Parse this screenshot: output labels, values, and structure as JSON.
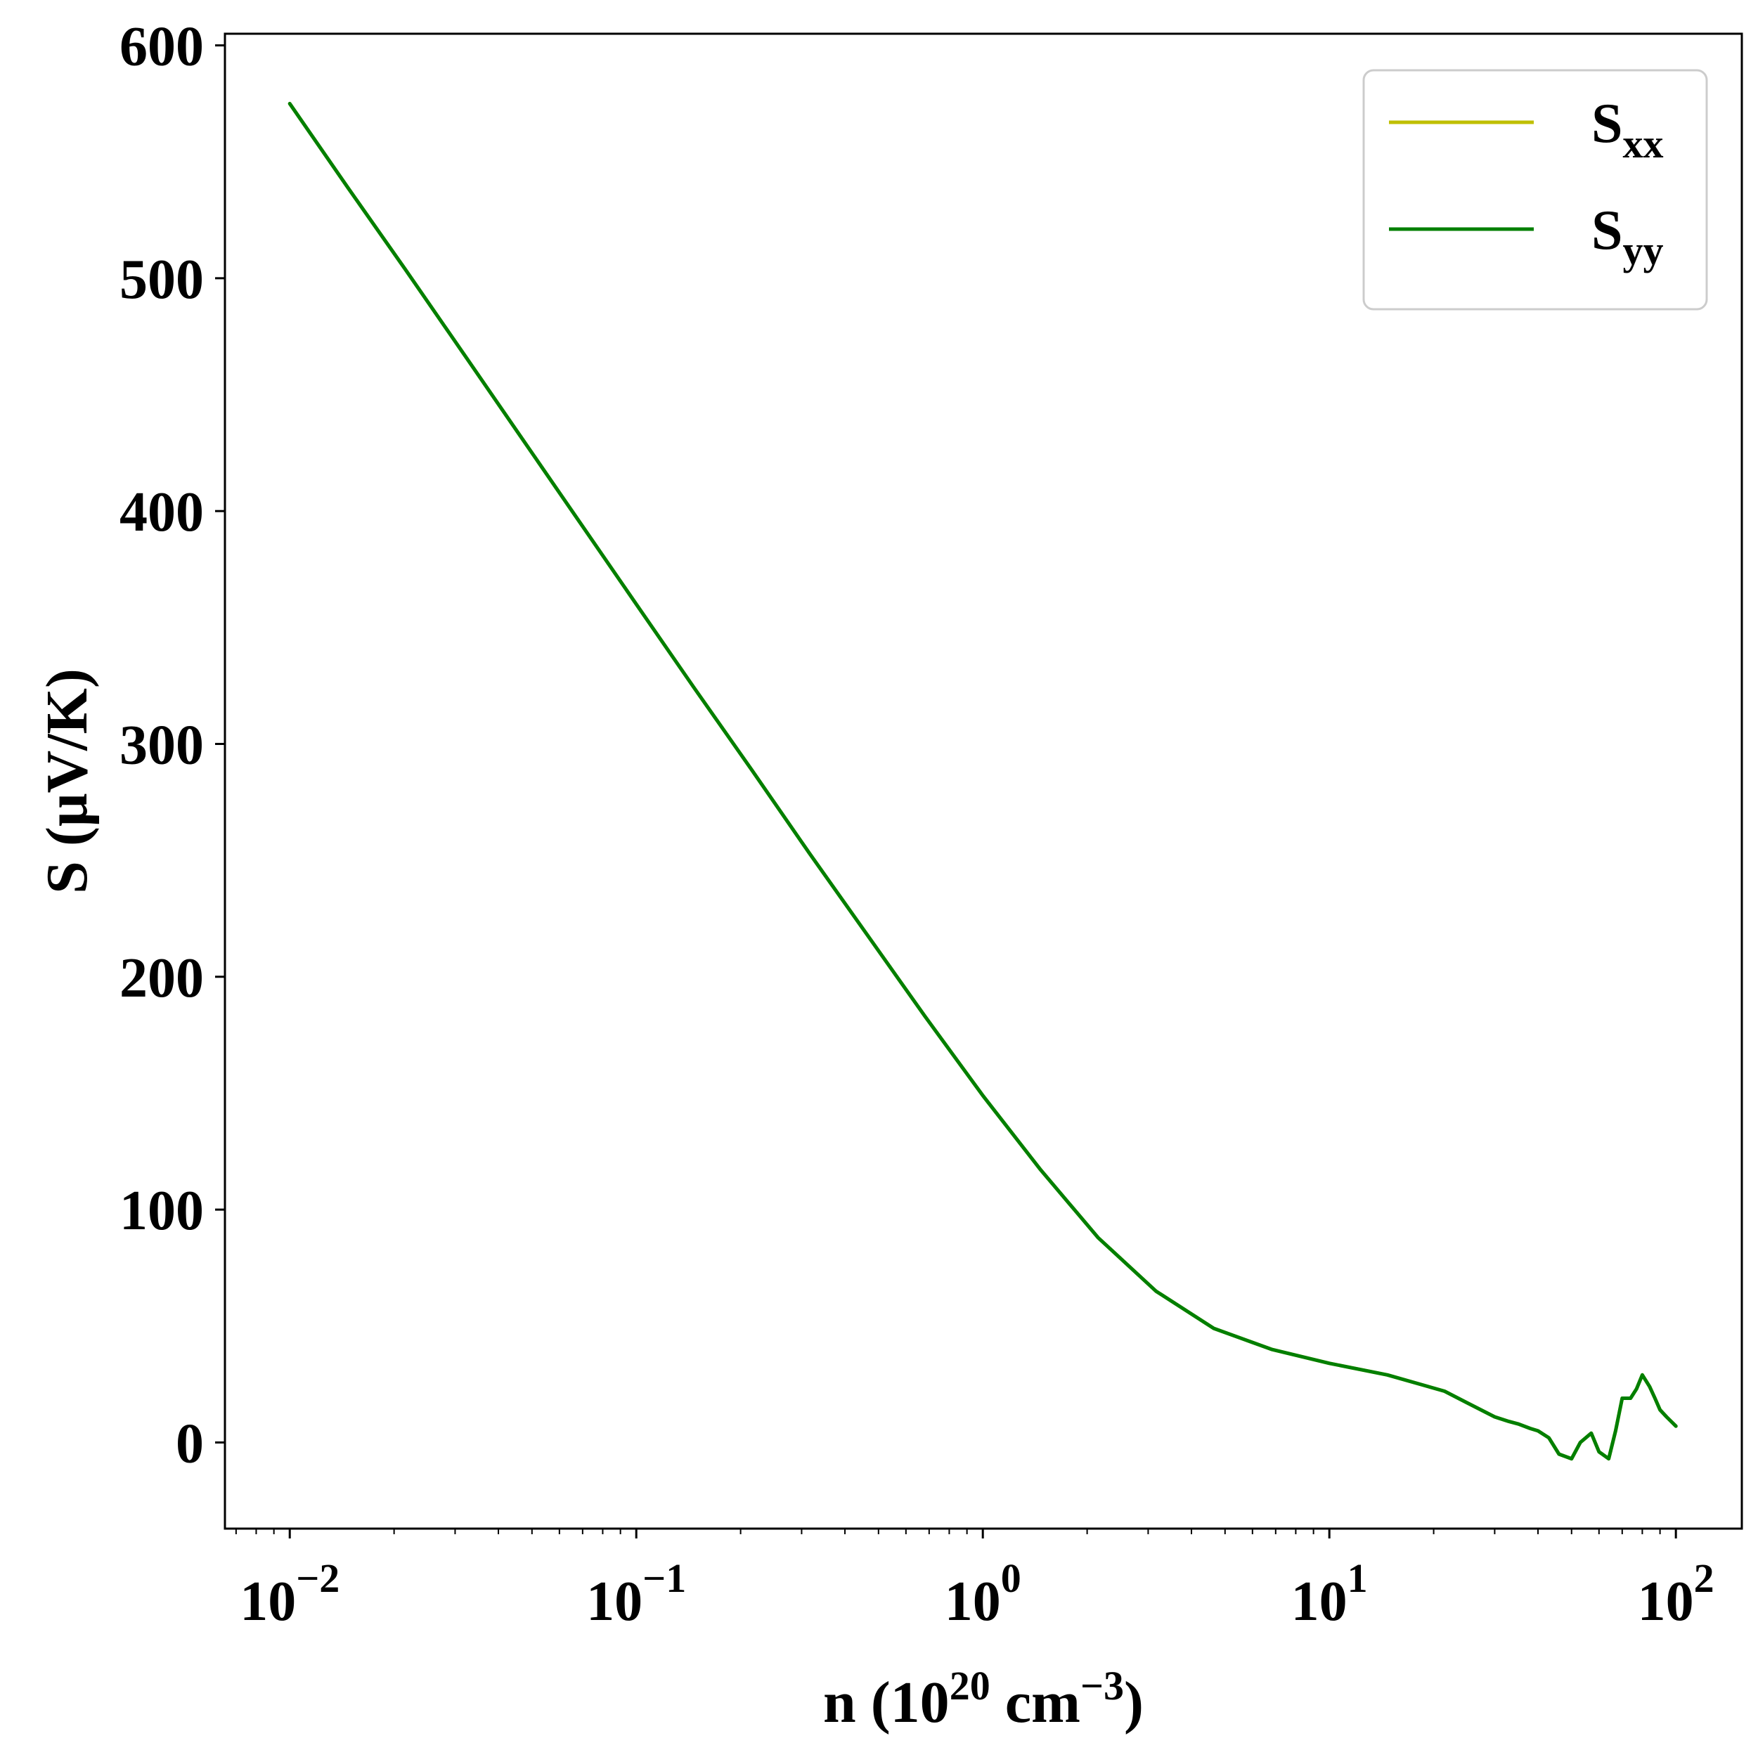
{
  "chart_data": {
    "type": "line",
    "xscale": "log",
    "xlim": [
      0.0065,
      155
    ],
    "ylim": [
      -37,
      605
    ],
    "grid": false,
    "legend_position": "top-right",
    "xlabel": {
      "prefix": "n (10",
      "sup1": "20",
      "mid": " cm",
      "sup2": "−3",
      "suffix": ")"
    },
    "ylabel": "S (μV/K)",
    "x_ticks": [
      {
        "value": 0.01,
        "base": "10",
        "exp": "−2"
      },
      {
        "value": 0.1,
        "base": "10",
        "exp": "−1"
      },
      {
        "value": 1,
        "base": "10",
        "exp": "0"
      },
      {
        "value": 10,
        "base": "10",
        "exp": "1"
      },
      {
        "value": 100,
        "base": "10",
        "exp": "2"
      }
    ],
    "y_ticks": [
      {
        "value": 0,
        "label": "0"
      },
      {
        "value": 100,
        "label": "100"
      },
      {
        "value": 200,
        "label": "200"
      },
      {
        "value": 300,
        "label": "300"
      },
      {
        "value": 400,
        "label": "400"
      },
      {
        "value": 500,
        "label": "500"
      },
      {
        "value": 600,
        "label": "600"
      }
    ],
    "series": [
      {
        "name": {
          "base": "S",
          "sub": "xx"
        },
        "color": "#bfbf00",
        "x": [
          0.01,
          0.0147,
          0.0215,
          0.0316,
          0.0464,
          0.0681,
          0.1,
          0.147,
          0.215,
          0.316,
          0.464,
          0.681,
          1.0,
          1.47,
          2.15,
          3.16,
          4.64,
          6.81,
          10.0,
          14.7,
          21.5,
          25.0,
          30.0,
          33.0,
          35.0,
          38.0,
          40.0,
          43.0,
          46.0,
          50.0,
          53.0,
          57.0,
          60.0,
          64.0,
          67.0,
          70.0,
          74.0,
          77.0,
          80.0,
          84.0,
          87.0,
          90.0,
          94.0,
          97.0,
          100.0
        ],
        "values": [
          575,
          539,
          504,
          468,
          432,
          396,
          360,
          324,
          289,
          253,
          218,
          183,
          149,
          117,
          88,
          65,
          49,
          40,
          34,
          29,
          22,
          17,
          11,
          9,
          8,
          6,
          5,
          2,
          -5,
          -7,
          0,
          4,
          -4,
          -7,
          5,
          19,
          19,
          23,
          29,
          24,
          19,
          14,
          11,
          9,
          7
        ]
      },
      {
        "name": {
          "base": "S",
          "sub": "yy"
        },
        "color": "#007f00",
        "x": [
          0.01,
          0.0147,
          0.0215,
          0.0316,
          0.0464,
          0.0681,
          0.1,
          0.147,
          0.215,
          0.316,
          0.464,
          0.681,
          1.0,
          1.47,
          2.15,
          3.16,
          4.64,
          6.81,
          10.0,
          14.7,
          21.5,
          25.0,
          30.0,
          33.0,
          35.0,
          38.0,
          40.0,
          43.0,
          46.0,
          50.0,
          53.0,
          57.0,
          60.0,
          64.0,
          67.0,
          70.0,
          74.0,
          77.0,
          80.0,
          84.0,
          87.0,
          90.0,
          94.0,
          97.0,
          100.0
        ],
        "values": [
          575,
          539,
          504,
          468,
          432,
          396,
          360,
          324,
          289,
          253,
          218,
          183,
          149,
          117,
          88,
          65,
          49,
          40,
          34,
          29,
          22,
          17,
          11,
          9,
          8,
          6,
          5,
          2,
          -5,
          -7,
          0,
          4,
          -4,
          -7,
          5,
          19,
          19,
          23,
          29,
          24,
          19,
          14,
          11,
          9,
          7
        ]
      }
    ]
  }
}
